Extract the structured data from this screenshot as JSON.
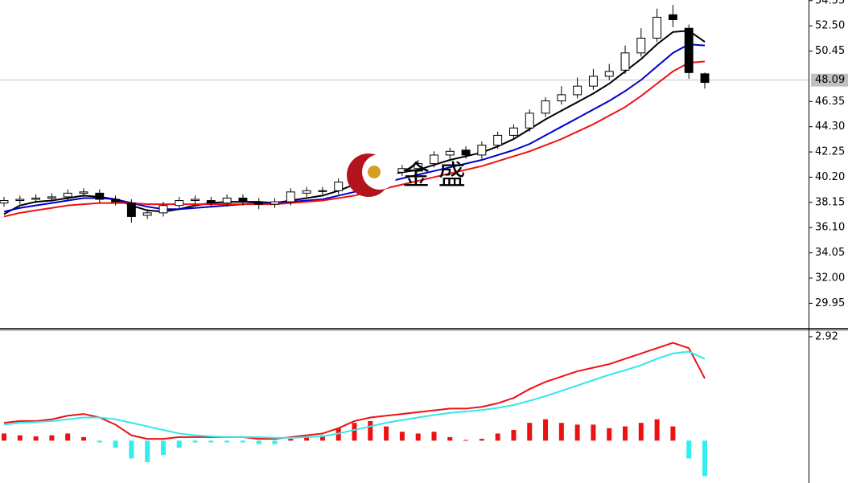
{
  "chart_data": [
    {
      "type": "candlestick",
      "watermark": "金 盛",
      "up_color": "#ffffff",
      "down_color": "#000000",
      "edge_color": "#000000",
      "open": [
        38.1,
        38.3,
        38.4,
        38.5,
        38.6,
        38.9,
        38.9,
        38.4,
        38.1,
        37.1,
        37.3,
        37.9,
        38.3,
        38.3,
        38.1,
        38.5,
        38.2,
        38.0,
        38.2,
        38.9,
        39.1,
        39.1,
        39.8,
        40.5,
        40.9,
        40.6,
        40.9,
        41.3,
        42.0,
        42.4,
        42.0,
        42.8,
        43.6,
        44.2,
        45.4,
        46.4,
        46.9,
        47.6,
        48.4,
        48.9,
        50.3,
        51.5,
        53.4,
        52.3,
        48.6
      ],
      "high": [
        38.6,
        38.7,
        38.8,
        38.9,
        39.2,
        39.3,
        39.2,
        38.7,
        38.4,
        37.6,
        38.2,
        38.6,
        38.7,
        38.6,
        38.8,
        38.8,
        38.5,
        38.5,
        39.3,
        39.4,
        39.4,
        40.1,
        40.8,
        41.1,
        41.2,
        41.2,
        41.6,
        42.3,
        42.6,
        42.7,
        43.1,
        43.9,
        44.5,
        45.7,
        46.7,
        47.6,
        48.3,
        49.0,
        49.4,
        50.9,
        52.3,
        53.9,
        54.2,
        52.6,
        48.7
      ],
      "low": [
        37.8,
        38.0,
        38.1,
        38.2,
        38.3,
        38.6,
        38.1,
        37.9,
        36.5,
        36.8,
        37.0,
        37.6,
        38.0,
        37.8,
        37.8,
        37.9,
        37.6,
        37.7,
        37.9,
        38.6,
        38.8,
        38.8,
        39.5,
        40.2,
        40.3,
        40.3,
        40.6,
        41.0,
        41.7,
        41.7,
        41.7,
        42.5,
        43.3,
        43.9,
        45.1,
        46.1,
        46.6,
        47.3,
        48.1,
        48.6,
        50.0,
        51.2,
        52.4,
        48.2,
        47.4
      ],
      "close": [
        38.3,
        38.4,
        38.5,
        38.6,
        38.9,
        39.0,
        38.4,
        38.2,
        37.0,
        37.3,
        37.9,
        38.3,
        38.4,
        38.1,
        38.5,
        38.2,
        38.0,
        38.2,
        39.0,
        39.1,
        39.1,
        39.8,
        40.5,
        40.8,
        40.6,
        40.9,
        41.3,
        42.0,
        42.3,
        42.0,
        42.8,
        43.6,
        44.2,
        45.4,
        46.4,
        46.9,
        47.6,
        48.4,
        48.8,
        50.3,
        51.5,
        53.2,
        53.0,
        48.7,
        47.9
      ],
      "lines": [
        {
          "color": "#000000",
          "values": [
            37.2,
            37.9,
            38.2,
            38.3,
            38.5,
            38.7,
            38.6,
            38.4,
            37.9,
            37.5,
            37.4,
            37.6,
            37.9,
            38.1,
            38.2,
            38.2,
            38.2,
            38.1,
            38.3,
            38.5,
            38.7,
            39.1,
            39.6,
            40.0,
            40.4,
            40.6,
            40.8,
            41.2,
            41.6,
            41.9,
            42.2,
            42.7,
            43.3,
            44.1,
            44.9,
            45.6,
            46.3,
            47.0,
            47.8,
            48.8,
            49.8,
            51.0,
            52.0,
            52.1,
            51.2
          ]
        },
        {
          "color": "#0000cc",
          "values": [
            37.4,
            37.7,
            37.9,
            38.1,
            38.3,
            38.5,
            38.5,
            38.4,
            38.1,
            37.8,
            37.6,
            37.6,
            37.7,
            37.8,
            37.9,
            38.0,
            38.1,
            38.1,
            38.2,
            38.3,
            38.4,
            38.7,
            39.0,
            39.4,
            39.8,
            40.1,
            40.4,
            40.7,
            41.0,
            41.3,
            41.6,
            42.0,
            42.4,
            42.9,
            43.6,
            44.3,
            45.0,
            45.7,
            46.4,
            47.2,
            48.1,
            49.2,
            50.3,
            51.0,
            50.9
          ]
        },
        {
          "color": "#ee1111",
          "values": [
            37.0,
            37.3,
            37.5,
            37.7,
            37.9,
            38.0,
            38.1,
            38.1,
            38.1,
            38.0,
            38.0,
            38.0,
            38.0,
            38.0,
            38.0,
            38.0,
            38.0,
            38.0,
            38.1,
            38.2,
            38.3,
            38.5,
            38.7,
            39.0,
            39.3,
            39.6,
            39.9,
            40.2,
            40.5,
            40.8,
            41.1,
            41.5,
            41.9,
            42.3,
            42.8,
            43.3,
            43.9,
            44.5,
            45.2,
            45.9,
            46.8,
            47.8,
            48.8,
            49.5,
            49.6
          ]
        }
      ],
      "last_price": 48.09,
      "ylim": [
        27.95,
        54.6
      ],
      "yticks": [
        {
          "value": 54.55,
          "label": "54.55"
        },
        {
          "value": 52.5,
          "label": "52.50"
        },
        {
          "value": 50.45,
          "label": "50.45"
        },
        {
          "value": 46.35,
          "label": "46.35"
        },
        {
          "value": 44.3,
          "label": "44.30"
        },
        {
          "value": 42.25,
          "label": "42.25"
        },
        {
          "value": 40.2,
          "label": "40.20"
        },
        {
          "value": 38.15,
          "label": "38.15"
        },
        {
          "value": 36.1,
          "label": "36.10"
        },
        {
          "value": 34.05,
          "label": "34.05"
        },
        {
          "value": 32,
          "label": "32.00"
        },
        {
          "value": 29.95,
          "label": "29.95"
        }
      ]
    },
    {
      "type": "macd",
      "histogram": {
        "up_color": "#ee1111",
        "down_color": "#33eeee",
        "values": [
          0.2,
          0.15,
          0.12,
          0.15,
          0.2,
          0.1,
          -0.05,
          -0.2,
          -0.5,
          -0.6,
          -0.4,
          -0.2,
          -0.05,
          -0.05,
          -0.05,
          -0.05,
          -0.1,
          -0.1,
          0.05,
          0.1,
          0.15,
          0.35,
          0.5,
          0.55,
          0.4,
          0.25,
          0.2,
          0.25,
          0.1,
          0.02,
          0.05,
          0.2,
          0.3,
          0.5,
          0.6,
          0.5,
          0.45,
          0.45,
          0.35,
          0.4,
          0.5,
          0.6,
          0.4,
          -0.5,
          -1.0
        ]
      },
      "lines": [
        {
          "color": "#ee1111",
          "values": [
            0.5,
            0.55,
            0.55,
            0.6,
            0.7,
            0.75,
            0.65,
            0.45,
            0.15,
            0.05,
            0.05,
            0.1,
            0.1,
            0.1,
            0.1,
            0.1,
            0.05,
            0.05,
            0.1,
            0.15,
            0.2,
            0.35,
            0.55,
            0.65,
            0.7,
            0.75,
            0.8,
            0.85,
            0.9,
            0.9,
            0.95,
            1.05,
            1.2,
            1.45,
            1.65,
            1.8,
            1.95,
            2.05,
            2.15,
            2.3,
            2.45,
            2.6,
            2.75,
            2.6,
            1.75
          ]
        },
        {
          "color": "#33e8e8",
          "values": [
            0.45,
            0.5,
            0.52,
            0.55,
            0.6,
            0.65,
            0.65,
            0.6,
            0.5,
            0.4,
            0.3,
            0.2,
            0.15,
            0.12,
            0.1,
            0.1,
            0.1,
            0.08,
            0.08,
            0.1,
            0.12,
            0.2,
            0.3,
            0.4,
            0.5,
            0.58,
            0.65,
            0.72,
            0.78,
            0.82,
            0.86,
            0.92,
            1.0,
            1.12,
            1.25,
            1.4,
            1.55,
            1.7,
            1.85,
            1.98,
            2.12,
            2.3,
            2.45,
            2.5,
            2.3
          ]
        }
      ],
      "ylim": [
        -1.19,
        3.1
      ],
      "yticks": [
        2.92
      ]
    }
  ]
}
